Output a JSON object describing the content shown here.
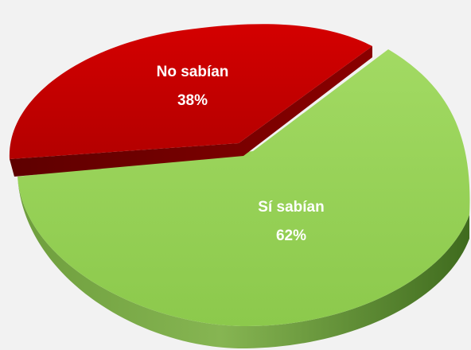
{
  "chart_data": {
    "type": "pie",
    "style": "3d",
    "slices": [
      {
        "label": "No sabían",
        "value": 38,
        "value_label": "38%",
        "color": "#c00000",
        "exploded": true
      },
      {
        "label": "Sí sabían",
        "value": 62,
        "value_label": "62%",
        "color": "#92d050",
        "exploded": false
      }
    ],
    "colors": {
      "background": "#f2f2f2",
      "no_sabian_side": "#7a0000",
      "si_sabian_side": "#4f7f26"
    }
  }
}
